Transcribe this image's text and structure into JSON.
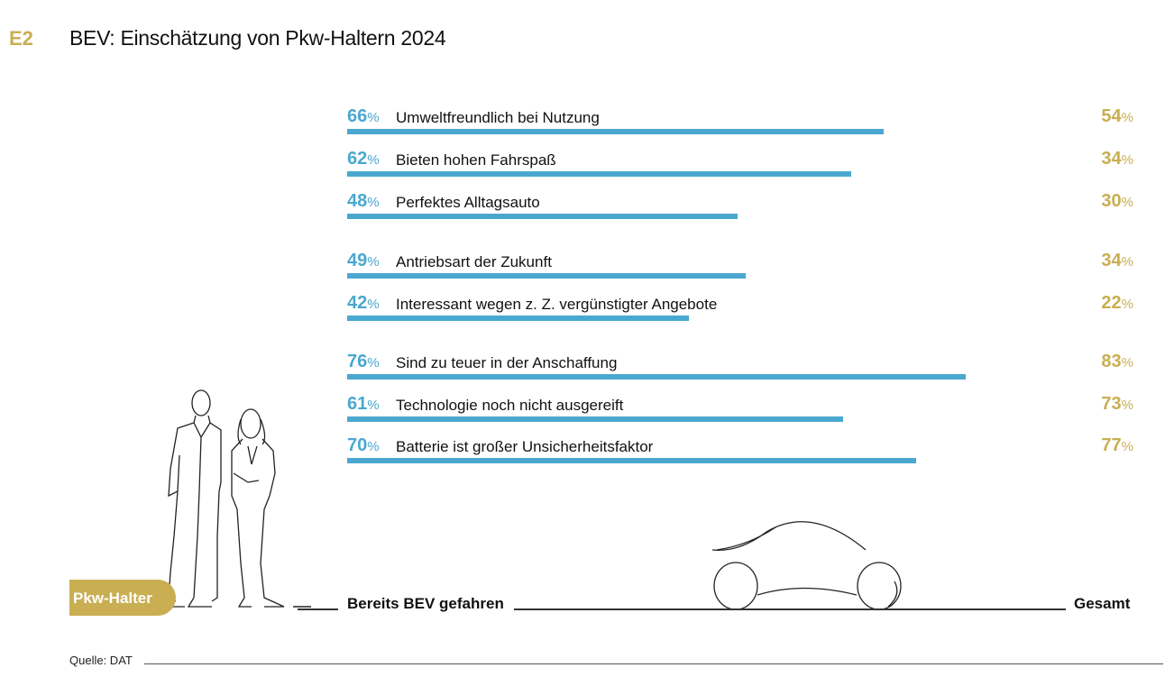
{
  "header": {
    "code": "E2",
    "title": "BEV: Einschätzung von Pkw-Haltern 2024"
  },
  "chart_data": {
    "type": "bar",
    "orientation": "horizontal",
    "title": "BEV: Einschätzung von Pkw-Haltern 2024",
    "categories": [
      "Umweltfreundlich bei Nutzung",
      "Bieten hohen Fahrspaß",
      "Perfektes Alltagsauto",
      "Antriebsart der Zukunft",
      "Interessant wegen z. Z. vergünstigter Angebote",
      "Sind zu teuer in der Anschaffung",
      "Technologie noch nicht ausgereift",
      "Batterie ist großer Unsicherheitsfaktor"
    ],
    "groups": [
      [
        0,
        1,
        2
      ],
      [
        3,
        4
      ],
      [
        5,
        6,
        7
      ]
    ],
    "series": [
      {
        "name": "Bereits BEV gefahren",
        "values": [
          66,
          62,
          48,
          49,
          42,
          76,
          61,
          70
        ],
        "color": "#4aa8d0"
      },
      {
        "name": "Gesamt",
        "values": [
          54,
          34,
          30,
          34,
          22,
          83,
          73,
          77
        ],
        "color": "#c9ae52"
      }
    ],
    "unit": "%",
    "xlim": [
      0,
      100
    ]
  },
  "footer": {
    "badge": "Pkw-Halter",
    "left_label": "Bereits BEV gefahren",
    "right_label": "Gesamt",
    "source": "Quelle: DAT"
  }
}
